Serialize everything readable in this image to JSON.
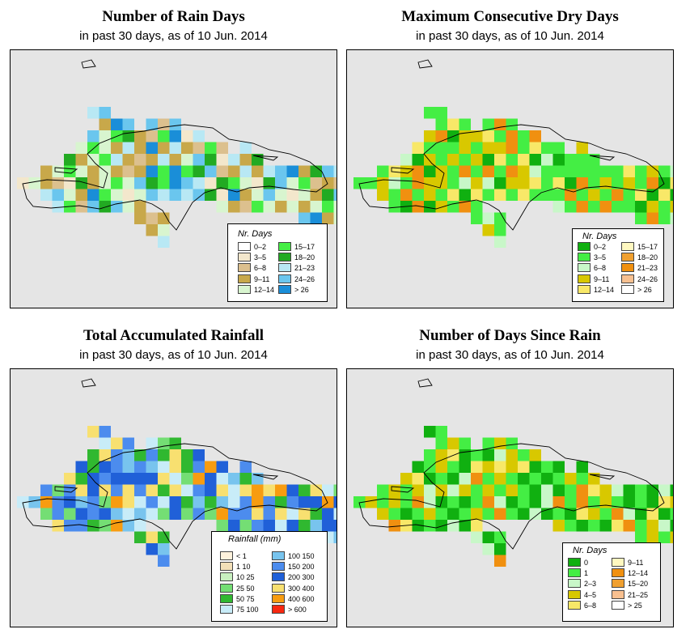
{
  "panels": [
    {
      "id": "rain-days",
      "title": "Number of Rain Days",
      "subtitle": "in past 30 days, as of  10 Jun. 2014",
      "legend": {
        "title": "Nr. Days",
        "items": [
          {
            "label": "0–2",
            "color": "#ffffff"
          },
          {
            "label": "3–5",
            "color": "#f3e7cc"
          },
          {
            "label": "6–8",
            "color": "#dcc08e"
          },
          {
            "label": "9–11",
            "color": "#c8a84a"
          },
          {
            "label": "12–14",
            "color": "#d8f5cf"
          },
          {
            "label": "15–17",
            "color": "#44ee44"
          },
          {
            "label": "18–20",
            "color": "#22aa22"
          },
          {
            "label": "21–23",
            "color": "#b8e8f4"
          },
          {
            "label": "24–26",
            "color": "#6ac6ee"
          },
          {
            "label": "> 26",
            "color": "#1a8ed8"
          }
        ]
      }
    },
    {
      "id": "max-dry-days",
      "title": "Maximum Consecutive Dry Days",
      "subtitle": "in past 30 days, as of  10 Jun. 2014",
      "legend": {
        "title": "Nr. Days",
        "items": [
          {
            "label": "0–2",
            "color": "#10b010"
          },
          {
            "label": "3–5",
            "color": "#44ee44"
          },
          {
            "label": "6–8",
            "color": "#c8f7c8"
          },
          {
            "label": "9–11",
            "color": "#d8c800"
          },
          {
            "label": "12–14",
            "color": "#f8e868"
          },
          {
            "label": "15–17",
            "color": "#fff8c0"
          },
          {
            "label": "18–20",
            "color": "#f0a030"
          },
          {
            "label": "21–23",
            "color": "#f09010"
          },
          {
            "label": "24–26",
            "color": "#f8c090"
          },
          {
            "label": "> 26",
            "color": "#ffffff"
          }
        ]
      }
    },
    {
      "id": "total-rainfall",
      "title": "Total Accumulated Rainfall",
      "subtitle": "in past 30 days, as of  10 Jun. 2014",
      "legend": {
        "title": "Rainfall (mm)",
        "items": [
          {
            "label": "< 1",
            "color": "#fff2dc"
          },
          {
            "label": "1  10",
            "color": "#f3e0b8"
          },
          {
            "label": "10  25",
            "color": "#c8f0c0"
          },
          {
            "label": "25  50",
            "color": "#74de74"
          },
          {
            "label": "50  75",
            "color": "#30b830"
          },
          {
            "label": "75  100",
            "color": "#c8ecf8"
          },
          {
            "label": "100  150",
            "color": "#78c4ee"
          },
          {
            "label": "150  200",
            "color": "#4c8cee"
          },
          {
            "label": "200  300",
            "color": "#2060d8"
          },
          {
            "label": "300  400",
            "color": "#f8e070"
          },
          {
            "label": "400  600",
            "color": "#f89c10"
          },
          {
            "label": "> 600",
            "color": "#f82810"
          }
        ]
      }
    },
    {
      "id": "days-since-rain",
      "title": "Number of Days Since Rain",
      "subtitle": "in past 30 days, as of  10 Jun. 2014",
      "legend": {
        "title": "Nr. Days",
        "items": [
          {
            "label": "0",
            "color": "#10b010"
          },
          {
            "label": "1",
            "color": "#44ee44"
          },
          {
            "label": "2–3",
            "color": "#c8f7c8"
          },
          {
            "label": "4–5",
            "color": "#d8c800"
          },
          {
            "label": "6–8",
            "color": "#f8e868"
          },
          {
            "label": "9–11",
            "color": "#fff8c0"
          },
          {
            "label": "12–14",
            "color": "#f09010"
          },
          {
            "label": "15–20",
            "color": "#f0a030"
          },
          {
            "label": "21–25",
            "color": "#f8c090"
          },
          {
            "label": "> 25",
            "color": "#ffffff"
          }
        ]
      }
    }
  ]
}
